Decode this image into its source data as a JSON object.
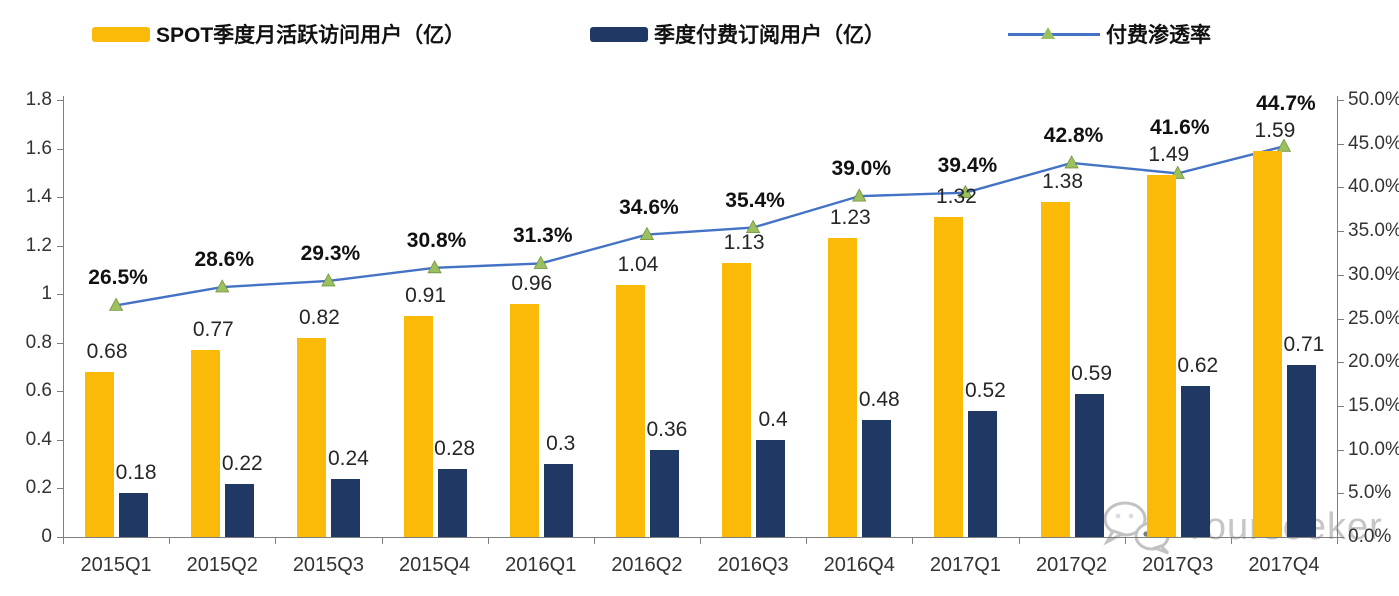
{
  "legend": [
    {
      "label": "SPOT季度月活跃访问用户（亿）",
      "swatch_color": "#FBBA08"
    },
    {
      "label": "季度付费订阅用户（亿）",
      "swatch_color": "#1F3864"
    },
    {
      "label": "付费渗透率",
      "line_color": "#4472C4",
      "marker_color": "#9CBF5F"
    }
  ],
  "chart_data": {
    "type": "bar",
    "subtype": "grouped bars with overlay line on secondary axis",
    "categories": [
      "2015Q1",
      "2015Q2",
      "2015Q3",
      "2015Q4",
      "2016Q1",
      "2016Q2",
      "2016Q3",
      "2016Q4",
      "2017Q1",
      "2017Q2",
      "2017Q3",
      "2017Q4"
    ],
    "series": [
      {
        "name": "SPOT季度月活跃访问用户（亿）",
        "type": "bar",
        "axis": "left",
        "color": "#FBBA08",
        "values": [
          0.68,
          0.77,
          0.82,
          0.91,
          0.96,
          1.04,
          1.13,
          1.23,
          1.32,
          1.38,
          1.49,
          1.59
        ],
        "labels": [
          "0.68",
          "0.77",
          "0.82",
          "0.91",
          "0.96",
          "1.04",
          "1.13",
          "1.23",
          "1.32",
          "1.38",
          "1.49",
          "1.59"
        ]
      },
      {
        "name": "季度付费订阅用户（亿）",
        "type": "bar",
        "axis": "left",
        "color": "#1F3864",
        "values": [
          0.18,
          0.22,
          0.24,
          0.28,
          0.3,
          0.36,
          0.4,
          0.48,
          0.52,
          0.59,
          0.62,
          0.71
        ],
        "labels": [
          "0.18",
          "0.22",
          "0.24",
          "0.28",
          "0.3",
          "0.36",
          "0.4",
          "0.48",
          "0.52",
          "0.59",
          "0.62",
          "0.71"
        ]
      },
      {
        "name": "付费渗透率",
        "type": "line",
        "axis": "right",
        "color": "#4472C4",
        "marker": "triangle",
        "marker_color": "#9CBF5F",
        "values": [
          26.5,
          28.6,
          29.3,
          30.8,
          31.3,
          34.6,
          35.4,
          39.0,
          39.4,
          42.8,
          41.6,
          44.7
        ],
        "labels": [
          "26.5%",
          "28.6%",
          "29.3%",
          "30.8%",
          "31.3%",
          "34.6%",
          "35.4%",
          "39.0%",
          "39.4%",
          "42.8%",
          "41.6%",
          "44.7%"
        ]
      }
    ],
    "left_axis": {
      "min": 0,
      "max": 1.8,
      "step": 0.2,
      "tick_labels": [
        "0",
        "0.2",
        "0.4",
        "0.6",
        "0.8",
        "1",
        "1.2",
        "1.4",
        "1.6",
        "1.8"
      ]
    },
    "right_axis": {
      "min": 0,
      "max": 50,
      "step": 5,
      "tick_labels": [
        "0.0%",
        "5.0%",
        "10.0%",
        "15.0%",
        "20.0%",
        "25.0%",
        "30.0%",
        "35.0%",
        "40.0%",
        "45.0%",
        "50.0%"
      ]
    },
    "grid": false,
    "legend_position": "top"
  },
  "watermark": {
    "text": "Yourseeker",
    "icon": "wechat-icon"
  }
}
